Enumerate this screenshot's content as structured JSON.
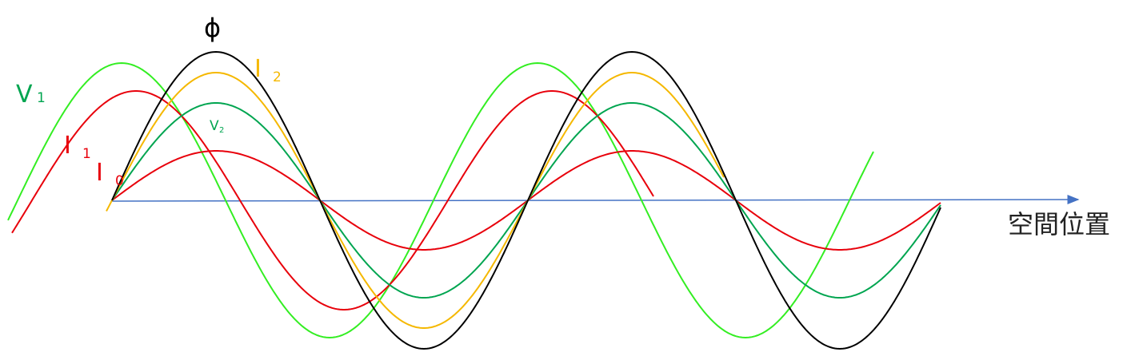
{
  "labels": {
    "phi": {
      "main": "ϕ"
    },
    "i2": {
      "main": "I",
      "sub": "2"
    },
    "v1": {
      "main": "V",
      "sub": "1"
    },
    "i1": {
      "main": "I",
      "sub": "1"
    },
    "i0": {
      "main": "I",
      "sub": "0"
    },
    "v2": {
      "main": "V",
      "sub": "2"
    },
    "axis": {
      "main": "空間位置"
    }
  }
}
